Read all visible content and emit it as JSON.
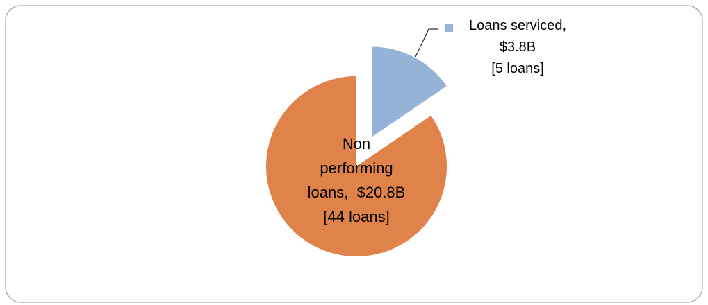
{
  "chart_data": {
    "type": "pie",
    "categories": [
      "Loans serviced,",
      "Non performing loans,"
    ],
    "values": [
      3.8,
      20.8
    ],
    "value_labels": [
      "$3.8B",
      "$20.8B"
    ],
    "loan_counts": [
      5,
      44
    ],
    "loan_count_labels": [
      "[5 loans]",
      "[44 loans]"
    ],
    "colors": [
      "#95b3d7",
      "#e0834a"
    ],
    "explode": [
      true,
      false
    ]
  }
}
